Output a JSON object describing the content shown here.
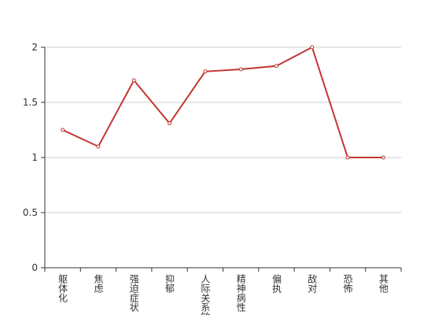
{
  "chart_data": {
    "type": "line",
    "categories": [
      "躯体化",
      "焦虑",
      "强迫症状",
      "抑郁",
      "人际关系敏感",
      "精神病性",
      "偏执",
      "敌对",
      "恐怖",
      "其他"
    ],
    "values": [
      1.25,
      1.1,
      1.7,
      1.31,
      1.78,
      1.8,
      1.83,
      2.0,
      1.0,
      1.0
    ],
    "color": "#c23531",
    "ylim": [
      0,
      2
    ],
    "yticks": [
      0,
      0.5,
      1,
      1.5,
      2
    ],
    "grid": true
  }
}
